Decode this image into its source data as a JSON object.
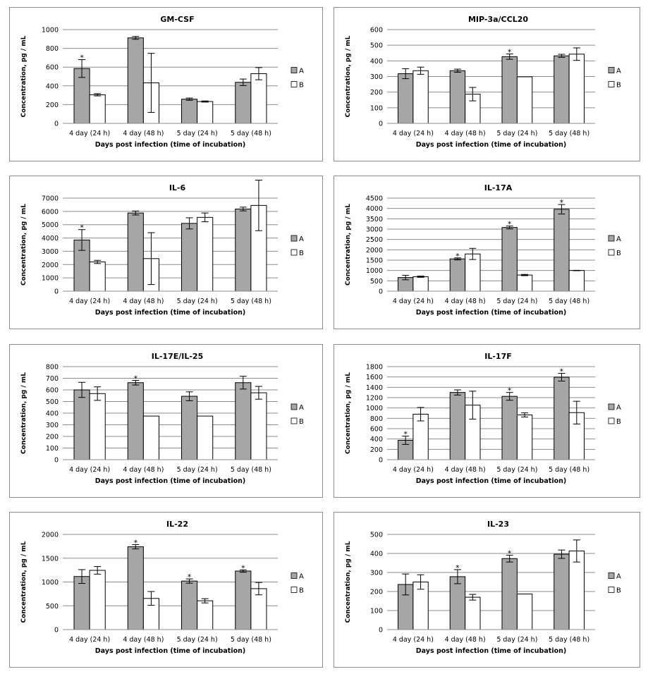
{
  "figure": {
    "colors": {
      "A": "#a6a6a6",
      "B": "#ffffff",
      "grid": "#8c8c8c",
      "stroke": "#000000"
    }
  },
  "chart_data": [
    {
      "type": "bar",
      "title": "GM-CSF",
      "xlabel": "Days post infection (time of incubation)",
      "ylabel": "Concentration, pg / mL",
      "categories": [
        "4 day (24 h)",
        "4 day (48 h)",
        "5 day (24 h)",
        "5 day (48 h)"
      ],
      "ylim": [
        0,
        1000
      ],
      "yticks": [
        0,
        200,
        400,
        600,
        800,
        1000
      ],
      "legend": "right",
      "grid": true,
      "series": [
        {
          "name": "A",
          "values": [
            585,
            912,
            258,
            438
          ],
          "errors": [
            95,
            15,
            12,
            35
          ],
          "significant": [
            true,
            false,
            false,
            false
          ]
        },
        {
          "name": "B",
          "values": [
            305,
            432,
            233,
            530
          ],
          "errors": [
            12,
            315,
            6,
            65
          ],
          "significant": [
            false,
            false,
            false,
            false
          ]
        }
      ]
    },
    {
      "type": "bar",
      "title": "MIP-3a/CCL20",
      "xlabel": "Days post infection (time of incubation)",
      "ylabel": "Concentration, pg / mL",
      "categories": [
        "4 day (24 h)",
        "4 day (48 h)",
        "5 day (24 h)",
        "5 day (48 h)"
      ],
      "ylim": [
        0,
        600
      ],
      "yticks": [
        0,
        100,
        200,
        300,
        400,
        500,
        600
      ],
      "legend": "right",
      "grid": true,
      "series": [
        {
          "name": "A",
          "values": [
            318,
            337,
            427,
            432
          ],
          "errors": [
            32,
            10,
            17,
            10
          ],
          "significant": [
            false,
            false,
            true,
            false
          ]
        },
        {
          "name": "B",
          "values": [
            337,
            187,
            298,
            443
          ],
          "errors": [
            23,
            43,
            0,
            40
          ],
          "significant": [
            false,
            false,
            false,
            false
          ]
        }
      ]
    },
    {
      "type": "bar",
      "title": "IL-6",
      "xlabel": "Days post infection (time of incubation)",
      "ylabel": "Concentration, pg / mL",
      "categories": [
        "4 day (24 h)",
        "4 day (48 h)",
        "5 day (24 h)",
        "5 day (48 h)"
      ],
      "ylim": [
        0,
        7000
      ],
      "yticks": [
        0,
        1000,
        2000,
        3000,
        4000,
        5000,
        6000,
        7000
      ],
      "legend": "right",
      "grid": true,
      "series": [
        {
          "name": "A",
          "values": [
            3850,
            5880,
            5100,
            6180
          ],
          "errors": [
            780,
            150,
            420,
            140
          ],
          "significant": [
            true,
            false,
            false,
            false
          ]
        },
        {
          "name": "B",
          "values": [
            2200,
            2450,
            5550,
            6450
          ],
          "errors": [
            120,
            1950,
            330,
            1900
          ],
          "significant": [
            false,
            false,
            false,
            false
          ]
        }
      ]
    },
    {
      "type": "bar",
      "title": "IL-17A",
      "xlabel": "Days post infection (time of incubation)",
      "ylabel": "Concentration, pg / mL",
      "categories": [
        "4 day (24 h)",
        "4 day (48 h)",
        "5 day (24 h)",
        "5 day (48 h)"
      ],
      "ylim": [
        0,
        4500
      ],
      "yticks": [
        0,
        500,
        1000,
        1500,
        2000,
        2500,
        3000,
        3500,
        4000,
        4500
      ],
      "legend": "right",
      "grid": true,
      "series": [
        {
          "name": "A",
          "values": [
            660,
            1560,
            3080,
            3960
          ],
          "errors": [
            110,
            50,
            70,
            230
          ],
          "significant": [
            false,
            true,
            true,
            true
          ]
        },
        {
          "name": "B",
          "values": [
            700,
            1800,
            780,
            1000
          ],
          "errors": [
            30,
            270,
            30,
            10
          ],
          "significant": [
            false,
            false,
            false,
            false
          ]
        }
      ]
    },
    {
      "type": "bar",
      "title": "IL-17E/IL-25",
      "xlabel": "Days post infection (time of incubation)",
      "ylabel": "Concentration, pg / mL",
      "categories": [
        "4 day (24 h)",
        "4 day (48 h)",
        "5 day (24 h)",
        "5 day (48 h)"
      ],
      "ylim": [
        0,
        800
      ],
      "yticks": [
        0,
        100,
        200,
        300,
        400,
        500,
        600,
        700,
        800
      ],
      "legend": "right",
      "grid": true,
      "series": [
        {
          "name": "A",
          "values": [
            600,
            662,
            545,
            662
          ],
          "errors": [
            65,
            20,
            38,
            55
          ],
          "significant": [
            false,
            true,
            false,
            false
          ]
        },
        {
          "name": "B",
          "values": [
            568,
            375,
            375,
            575
          ],
          "errors": [
            58,
            0,
            0,
            55
          ],
          "significant": [
            false,
            false,
            false,
            false
          ]
        }
      ]
    },
    {
      "type": "bar",
      "title": "IL-17F",
      "xlabel": "Days post infection (time of incubation)",
      "ylabel": "Concentration, pg / mL",
      "categories": [
        "4 day (24 h)",
        "4 day (48 h)",
        "5 day (24 h)",
        "5 day (48 h)"
      ],
      "ylim": [
        0,
        1800
      ],
      "yticks": [
        0,
        200,
        400,
        600,
        800,
        1000,
        1200,
        1400,
        1600,
        1800
      ],
      "legend": "right",
      "grid": true,
      "series": [
        {
          "name": "A",
          "values": [
            375,
            1300,
            1225,
            1595
          ],
          "errors": [
            80,
            50,
            75,
            75
          ],
          "significant": [
            true,
            false,
            true,
            true
          ]
        },
        {
          "name": "B",
          "values": [
            880,
            1055,
            865,
            910
          ],
          "errors": [
            130,
            270,
            40,
            220
          ],
          "significant": [
            false,
            false,
            false,
            false
          ]
        }
      ]
    },
    {
      "type": "bar",
      "title": "IL-22",
      "xlabel": "Days post infection (time of incubation)",
      "ylabel": "Concentration, pg / mL",
      "categories": [
        "4 day (24 h)",
        "4 day (48 h)",
        "5 day (24 h)",
        "5 day (48 h)"
      ],
      "ylim": [
        0,
        2000
      ],
      "yticks": [
        0,
        500,
        1000,
        1500,
        2000
      ],
      "legend": "right",
      "grid": true,
      "series": [
        {
          "name": "A",
          "values": [
            1115,
            1740,
            1020,
            1230
          ],
          "errors": [
            145,
            45,
            45,
            25
          ],
          "significant": [
            false,
            true,
            true,
            true
          ]
        },
        {
          "name": "B",
          "values": [
            1245,
            655,
            605,
            860
          ],
          "errors": [
            80,
            145,
            45,
            130
          ],
          "significant": [
            false,
            false,
            false,
            false
          ]
        }
      ]
    },
    {
      "type": "bar",
      "title": "IL-23",
      "xlabel": "Days post infection (time of incubation)",
      "ylabel": "Concentration, pg / mL",
      "categories": [
        "4 day (24 h)",
        "4 day (48 h)",
        "5 day (24 h)",
        "5 day (48 h)"
      ],
      "ylim": [
        0,
        500
      ],
      "yticks": [
        0,
        100,
        200,
        300,
        400,
        500
      ],
      "legend": "right",
      "grid": true,
      "series": [
        {
          "name": "A",
          "values": [
            237,
            278,
            373,
            396
          ],
          "errors": [
            55,
            37,
            18,
            22
          ],
          "significant": [
            false,
            true,
            true,
            false
          ]
        },
        {
          "name": "B",
          "values": [
            250,
            170,
            187,
            413
          ],
          "errors": [
            38,
            15,
            0,
            58
          ],
          "significant": [
            false,
            false,
            false,
            false
          ]
        }
      ]
    }
  ]
}
